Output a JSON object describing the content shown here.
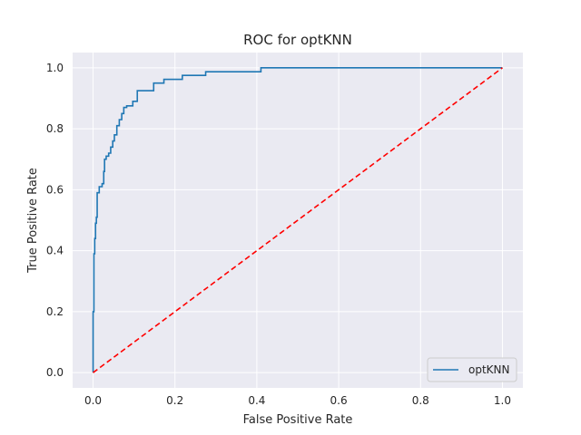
{
  "chart_data": {
    "type": "line",
    "title": "ROC for optKNN",
    "xlabel": "False Positive Rate",
    "ylabel": "True Positive Rate",
    "xlim": [
      -0.05,
      1.05
    ],
    "ylim": [
      -0.05,
      1.05
    ],
    "xticks": [
      0.0,
      0.2,
      0.4,
      0.6,
      0.8,
      1.0
    ],
    "yticks": [
      0.0,
      0.2,
      0.4,
      0.6,
      0.8,
      1.0
    ],
    "xtick_labels": [
      "0.0",
      "0.2",
      "0.4",
      "0.6",
      "0.8",
      "1.0"
    ],
    "ytick_labels": [
      "0.0",
      "0.2",
      "0.4",
      "0.6",
      "0.8",
      "1.0"
    ],
    "grid": true,
    "background": "#eaeaf2",
    "legend_position": "lower right",
    "series": [
      {
        "name": "optKNN",
        "color": "#1f77b4",
        "style": "solid",
        "x": [
          0.0,
          0.0,
          0.002,
          0.002,
          0.004,
          0.004,
          0.006,
          0.006,
          0.008,
          0.008,
          0.01,
          0.01,
          0.015,
          0.015,
          0.022,
          0.022,
          0.026,
          0.026,
          0.028,
          0.028,
          0.032,
          0.032,
          0.038,
          0.038,
          0.043,
          0.043,
          0.048,
          0.048,
          0.052,
          0.052,
          0.058,
          0.058,
          0.064,
          0.064,
          0.07,
          0.07,
          0.075,
          0.075,
          0.082,
          0.082,
          0.097,
          0.097,
          0.108,
          0.108,
          0.148,
          0.148,
          0.173,
          0.173,
          0.218,
          0.218,
          0.275,
          0.275,
          0.41,
          0.41,
          1.0
        ],
        "y": [
          0.0,
          0.2,
          0.2,
          0.39,
          0.39,
          0.44,
          0.44,
          0.49,
          0.49,
          0.51,
          0.51,
          0.59,
          0.59,
          0.61,
          0.61,
          0.62,
          0.62,
          0.66,
          0.66,
          0.7,
          0.7,
          0.71,
          0.71,
          0.72,
          0.72,
          0.74,
          0.74,
          0.76,
          0.76,
          0.78,
          0.78,
          0.81,
          0.81,
          0.83,
          0.83,
          0.85,
          0.85,
          0.87,
          0.87,
          0.875,
          0.875,
          0.89,
          0.89,
          0.925,
          0.925,
          0.95,
          0.95,
          0.962,
          0.962,
          0.975,
          0.975,
          0.987,
          0.987,
          1.0,
          1.0
        ]
      },
      {
        "name": "",
        "color": "#ff0000",
        "style": "dashed",
        "x": [
          0.0,
          1.0
        ],
        "y": [
          0.0,
          1.0
        ]
      }
    ]
  }
}
